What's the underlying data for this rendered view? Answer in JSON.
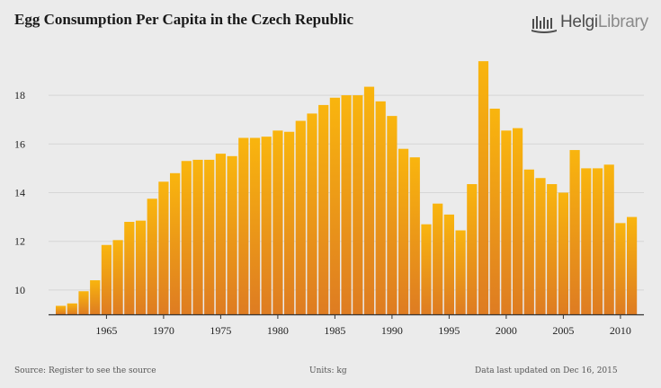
{
  "title": "Egg Consumption Per Capita in the Czech Republic",
  "logo": {
    "brand_bold": "Helgi",
    "brand_thin": "Library"
  },
  "footer": {
    "source": "Source: Register to see the source",
    "units": "Units: kg",
    "updated": "Data last updated on Dec 16, 2015"
  },
  "colors": {
    "bar_top": "#f9b50e",
    "bar_bottom": "#de7c22",
    "grid": "#d6d6d6",
    "background": "#ebebeb"
  },
  "chart_data": {
    "type": "bar",
    "title": "Egg Consumption Per Capita in the Czech Republic",
    "xlabel": "",
    "ylabel": "kg",
    "ylim": [
      9,
      19.7
    ],
    "yticks": [
      10,
      12,
      14,
      16,
      18
    ],
    "xticks": [
      1965,
      1970,
      1975,
      1980,
      1985,
      1990,
      1995,
      2000,
      2005,
      2010
    ],
    "categories": [
      1961,
      1962,
      1963,
      1964,
      1965,
      1966,
      1967,
      1968,
      1969,
      1970,
      1971,
      1972,
      1973,
      1974,
      1975,
      1976,
      1977,
      1978,
      1979,
      1980,
      1981,
      1982,
      1983,
      1984,
      1985,
      1986,
      1987,
      1988,
      1989,
      1990,
      1991,
      1992,
      1993,
      1994,
      1995,
      1996,
      1997,
      1998,
      1999,
      2000,
      2001,
      2002,
      2003,
      2004,
      2005,
      2006,
      2007,
      2008,
      2009,
      2010,
      2011
    ],
    "values": [
      9.35,
      9.45,
      9.95,
      10.4,
      11.85,
      12.05,
      12.8,
      12.85,
      13.75,
      14.45,
      14.8,
      15.3,
      15.35,
      15.35,
      15.6,
      15.5,
      16.25,
      16.25,
      16.3,
      16.55,
      16.5,
      16.95,
      17.25,
      17.6,
      17.9,
      18.0,
      18.0,
      18.35,
      17.75,
      17.15,
      15.8,
      15.45,
      12.7,
      13.55,
      13.1,
      12.45,
      14.35,
      19.4,
      17.45,
      16.55,
      16.65,
      14.95,
      14.6,
      14.35,
      14.0,
      15.75,
      15.0,
      15.0,
      15.15,
      12.75,
      13.0
    ]
  }
}
